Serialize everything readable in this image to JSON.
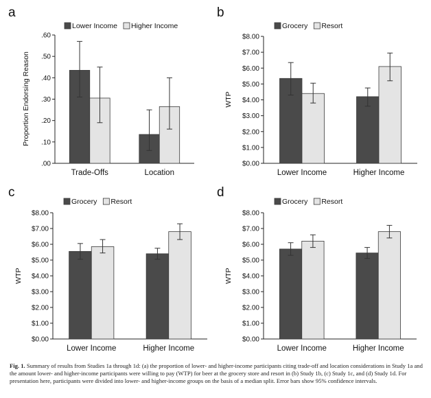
{
  "colors": {
    "dark": "#4a4a4a",
    "light": "#e4e4e4",
    "axis": "#222222"
  },
  "caption": {
    "label": "Fig. 1.",
    "text": "Summary of results from Studies 1a through 1d: (a) the proportion of lower- and higher-income participants citing trade-off and location considerations in Study 1a and the amount lower- and higher-income participants were willing to pay (WTP) for beer at the grocery store and resort in (b) Study 1b, (c) Study 1c, and (d) Study 1d. For presentation here, participants were divided into lower- and higher-income groups on the basis of a median split. Error bars show 95% confidence intervals."
  },
  "chart_data": [
    {
      "panel": "a",
      "type": "bar",
      "ylabel": "Proportion Endorsing Reason",
      "xlabel": "",
      "ylim": [
        0,
        0.6
      ],
      "yticks": [
        ".00",
        ".10",
        ".20",
        ".30",
        ".40",
        ".50",
        ".60"
      ],
      "categories": [
        "Trade-Offs",
        "Location"
      ],
      "legend": [
        "Lower Income",
        "Higher Income"
      ],
      "series": [
        {
          "name": "Lower Income",
          "values": [
            0.435,
            0.135
          ],
          "ci_low": [
            0.31,
            0.06
          ],
          "ci_high": [
            0.57,
            0.25
          ]
        },
        {
          "name": "Higher Income",
          "values": [
            0.305,
            0.265
          ],
          "ci_low": [
            0.19,
            0.16
          ],
          "ci_high": [
            0.45,
            0.4
          ]
        }
      ]
    },
    {
      "panel": "b",
      "type": "bar",
      "ylabel": "WTP",
      "xlabel": "",
      "ylim": [
        0,
        8
      ],
      "yticks": [
        "$0.00",
        "$1.00",
        "$2.00",
        "$3.00",
        "$4.00",
        "$5.00",
        "$6.00",
        "$7.00",
        "$8.00"
      ],
      "categories": [
        "Lower Income",
        "Higher Income"
      ],
      "legend": [
        "Grocery",
        "Resort"
      ],
      "series": [
        {
          "name": "Grocery",
          "values": [
            5.35,
            4.2
          ],
          "ci_low": [
            4.3,
            3.6
          ],
          "ci_high": [
            6.35,
            4.75
          ]
        },
        {
          "name": "Resort",
          "values": [
            4.4,
            6.1
          ],
          "ci_low": [
            3.8,
            5.2
          ],
          "ci_high": [
            5.05,
            6.95
          ]
        }
      ]
    },
    {
      "panel": "c",
      "type": "bar",
      "ylabel": "WTP",
      "xlabel": "",
      "ylim": [
        0,
        8
      ],
      "yticks": [
        "$0.00",
        "$1.00",
        "$2.00",
        "$3.00",
        "$4.00",
        "$5.00",
        "$6.00",
        "$7.00",
        "$8.00"
      ],
      "categories": [
        "Lower Income",
        "Higher Income"
      ],
      "legend": [
        "Grocery",
        "Resort"
      ],
      "series": [
        {
          "name": "Grocery",
          "values": [
            5.55,
            5.4
          ],
          "ci_low": [
            5.05,
            5.05
          ],
          "ci_high": [
            6.05,
            5.75
          ]
        },
        {
          "name": "Resort",
          "values": [
            5.85,
            6.8
          ],
          "ci_low": [
            5.45,
            6.3
          ],
          "ci_high": [
            6.3,
            7.3
          ]
        }
      ]
    },
    {
      "panel": "d",
      "type": "bar",
      "ylabel": "WTP",
      "xlabel": "",
      "ylim": [
        0,
        8
      ],
      "yticks": [
        "$0.00",
        "$1.00",
        "$2.00",
        "$3.00",
        "$4.00",
        "$5.00",
        "$6.00",
        "$7.00",
        "$8.00"
      ],
      "categories": [
        "Lower Income",
        "Higher Income"
      ],
      "legend": [
        "Grocery",
        "Resort"
      ],
      "series": [
        {
          "name": "Grocery",
          "values": [
            5.7,
            5.45
          ],
          "ci_low": [
            5.3,
            5.1
          ],
          "ci_high": [
            6.1,
            5.8
          ]
        },
        {
          "name": "Resort",
          "values": [
            6.2,
            6.8
          ],
          "ci_low": [
            5.8,
            6.4
          ],
          "ci_high": [
            6.6,
            7.2
          ]
        }
      ]
    }
  ]
}
